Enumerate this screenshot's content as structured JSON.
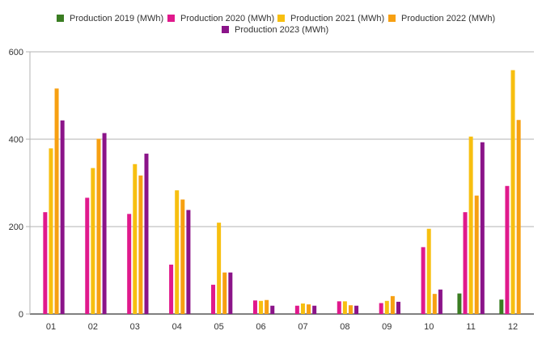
{
  "chart_data": {
    "type": "bar",
    "categories": [
      "01",
      "02",
      "03",
      "04",
      "05",
      "06",
      "07",
      "08",
      "09",
      "10",
      "11",
      "12"
    ],
    "series": [
      {
        "name": "Production 2019 (MWh)",
        "color": "#3a7d22",
        "values": [
          0,
          0,
          0,
          0,
          0,
          0,
          0,
          0,
          0,
          0,
          47,
          33
        ]
      },
      {
        "name": "Production 2020 (MWh)",
        "color": "#e0198c",
        "values": [
          233,
          266,
          229,
          113,
          67,
          31,
          19,
          29,
          25,
          153,
          233,
          293
        ]
      },
      {
        "name": "Production 2021 (MWh)",
        "color": "#f7bf10",
        "values": [
          379,
          334,
          343,
          283,
          209,
          30,
          24,
          29,
          30,
          195,
          406,
          558
        ]
      },
      {
        "name": "Production 2022 (MWh)",
        "color": "#f7a012",
        "values": [
          516,
          401,
          317,
          262,
          95,
          32,
          22,
          20,
          41,
          46,
          271,
          444
        ]
      },
      {
        "name": "Production 2023 (MWh)",
        "color": "#8b1489",
        "values": [
          443,
          414,
          367,
          238,
          95,
          19,
          19,
          19,
          28,
          56,
          393,
          0
        ]
      }
    ],
    "ylim": [
      0,
      600
    ],
    "yticks": [
      0,
      200,
      400,
      600
    ],
    "grid": true,
    "legend": "top-center"
  }
}
